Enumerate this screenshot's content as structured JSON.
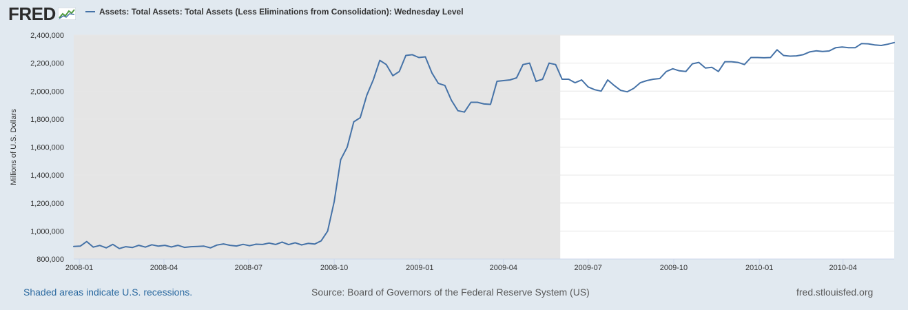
{
  "logo": {
    "text": "FRED",
    "icon": "fred-graph-icon"
  },
  "legend": {
    "label": "Assets: Total Assets: Total Assets (Less Eliminations from Consolidation): Wednesday Level"
  },
  "footer": {
    "recession_note": "Shaded areas indicate U.S. recessions.",
    "source": "Source: Board of Governors of the Federal Reserve System (US)",
    "url": "fred.stlouisfed.org"
  },
  "colors": {
    "line": "#4572a7",
    "recession_shade": "#e5e5e5",
    "plot_bg": "#ffffff",
    "page_bg": "#e1e9f0",
    "grid": "#e6e6e6"
  },
  "chart_data": {
    "type": "line",
    "title": "",
    "xlabel": "",
    "ylabel": "Millions of U.S. Dollars",
    "ylim": [
      800000,
      2400000
    ],
    "yticks": [
      800000,
      1000000,
      1200000,
      1400000,
      1600000,
      1800000,
      2000000,
      2200000,
      2400000
    ],
    "ytick_labels": [
      "800,000",
      "1,000,000",
      "1,200,000",
      "1,400,000",
      "1,600,000",
      "1,800,000",
      "2,000,000",
      "2,200,000",
      "2,400,000"
    ],
    "xlim": [
      "2007-12-26",
      "2010-05-26"
    ],
    "xticks": [
      "2008-01-01",
      "2008-04-01",
      "2008-07-01",
      "2008-10-01",
      "2009-01-01",
      "2009-04-01",
      "2009-07-01",
      "2009-10-01",
      "2010-01-01",
      "2010-04-01"
    ],
    "xtick_labels": [
      "2008-01",
      "2008-04",
      "2008-07",
      "2008-10",
      "2009-01",
      "2009-04",
      "2009-07",
      "2009-10",
      "2010-01",
      "2010-04"
    ],
    "grid": true,
    "legend_position": "top-left",
    "recessions": [
      {
        "start": "2007-12-01",
        "end": "2009-06-01"
      }
    ],
    "series": [
      {
        "name": "Assets: Total Assets: Total Assets (Less Eliminations from Consolidation): Wednesday Level",
        "x": [
          "2007-12-26",
          "2008-01-02",
          "2008-01-09",
          "2008-01-16",
          "2008-01-23",
          "2008-01-30",
          "2008-02-06",
          "2008-02-13",
          "2008-02-20",
          "2008-02-27",
          "2008-03-05",
          "2008-03-12",
          "2008-03-19",
          "2008-03-26",
          "2008-04-02",
          "2008-04-09",
          "2008-04-16",
          "2008-04-23",
          "2008-04-30",
          "2008-05-07",
          "2008-05-14",
          "2008-05-21",
          "2008-05-28",
          "2008-06-04",
          "2008-06-11",
          "2008-06-18",
          "2008-06-25",
          "2008-07-02",
          "2008-07-09",
          "2008-07-16",
          "2008-07-23",
          "2008-07-30",
          "2008-08-06",
          "2008-08-13",
          "2008-08-20",
          "2008-08-27",
          "2008-09-03",
          "2008-09-10",
          "2008-09-17",
          "2008-09-24",
          "2008-10-01",
          "2008-10-08",
          "2008-10-15",
          "2008-10-22",
          "2008-10-29",
          "2008-11-05",
          "2008-11-12",
          "2008-11-19",
          "2008-11-26",
          "2008-12-03",
          "2008-12-10",
          "2008-12-17",
          "2008-12-24",
          "2008-12-31",
          "2009-01-07",
          "2009-01-14",
          "2009-01-21",
          "2009-01-28",
          "2009-02-04",
          "2009-02-11",
          "2009-02-18",
          "2009-02-25",
          "2009-03-04",
          "2009-03-11",
          "2009-03-18",
          "2009-03-25",
          "2009-04-01",
          "2009-04-08",
          "2009-04-15",
          "2009-04-22",
          "2009-04-29",
          "2009-05-06",
          "2009-05-13",
          "2009-05-20",
          "2009-05-27",
          "2009-06-03",
          "2009-06-10",
          "2009-06-17",
          "2009-06-24",
          "2009-07-01",
          "2009-07-08",
          "2009-07-15",
          "2009-07-22",
          "2009-07-29",
          "2009-08-05",
          "2009-08-12",
          "2009-08-19",
          "2009-08-26",
          "2009-09-02",
          "2009-09-09",
          "2009-09-16",
          "2009-09-23",
          "2009-09-30",
          "2009-10-07",
          "2009-10-14",
          "2009-10-21",
          "2009-10-28",
          "2009-11-04",
          "2009-11-11",
          "2009-11-18",
          "2009-11-25",
          "2009-12-02",
          "2009-12-09",
          "2009-12-16",
          "2009-12-23",
          "2009-12-30",
          "2010-01-06",
          "2010-01-13",
          "2010-01-20",
          "2010-01-27",
          "2010-02-03",
          "2010-02-10",
          "2010-02-17",
          "2010-02-24",
          "2010-03-03",
          "2010-03-10",
          "2010-03-17",
          "2010-03-24",
          "2010-03-31",
          "2010-04-07",
          "2010-04-14",
          "2010-04-21",
          "2010-04-28",
          "2010-05-05",
          "2010-05-12",
          "2010-05-19",
          "2010-05-26"
        ],
        "values": [
          890000,
          892000,
          925000,
          885000,
          897000,
          880000,
          905000,
          875000,
          888000,
          882000,
          898000,
          885000,
          902000,
          892000,
          898000,
          886000,
          898000,
          883000,
          888000,
          890000,
          892000,
          880000,
          900000,
          908000,
          898000,
          893000,
          905000,
          895000,
          906000,
          904000,
          914000,
          904000,
          921000,
          903000,
          916000,
          901000,
          912000,
          907000,
          930000,
          1000000,
          1210000,
          1510000,
          1600000,
          1780000,
          1810000,
          1970000,
          2080000,
          2220000,
          2190000,
          2110000,
          2140000,
          2255000,
          2260000,
          2240000,
          2245000,
          2130000,
          2055000,
          2040000,
          1935000,
          1860000,
          1850000,
          1920000,
          1920000,
          1908000,
          1905000,
          2070000,
          2075000,
          2080000,
          2095000,
          2190000,
          2200000,
          2070000,
          2085000,
          2200000,
          2190000,
          2085000,
          2085000,
          2060000,
          2080000,
          2030000,
          2010000,
          2000000,
          2080000,
          2040000,
          2005000,
          1995000,
          2020000,
          2060000,
          2075000,
          2085000,
          2090000,
          2140000,
          2160000,
          2145000,
          2140000,
          2195000,
          2205000,
          2165000,
          2170000,
          2140000,
          2210000,
          2210000,
          2205000,
          2190000,
          2240000,
          2240000,
          2238000,
          2240000,
          2295000,
          2255000,
          2250000,
          2252000,
          2260000,
          2280000,
          2288000,
          2283000,
          2287000,
          2310000,
          2315000,
          2310000,
          2310000,
          2340000,
          2338000,
          2330000,
          2326000,
          2335000,
          2347000
        ]
      }
    ]
  }
}
